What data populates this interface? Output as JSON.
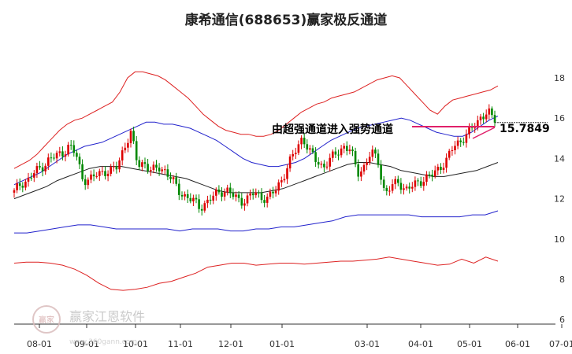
{
  "chart_data": {
    "type": "candlestick",
    "title": "康希通信(688653)赢家极反通道",
    "y_ticks": [
      18,
      16,
      14,
      12,
      10,
      8,
      6
    ],
    "ylim": [
      6,
      18.8
    ],
    "x_ticks": [
      "08-01",
      "09-01",
      "10-01",
      "11-01",
      "12-01",
      "01-01",
      "03-01",
      "04-01",
      "05-01",
      "06-01",
      "07-01"
    ],
    "annotation": "由超强通道进入强势通道",
    "last_price_label": "15.7849",
    "last_price": 15.78,
    "grid": false,
    "series": [
      {
        "role": "price",
        "color": "#cc0000",
        "values": [
          12.3,
          12.8,
          12.9,
          13.3,
          13.6,
          13.9,
          14.1,
          14.3,
          14.6,
          14.2,
          13.0,
          12.9,
          13.2,
          13.4,
          13.3,
          13.6,
          14.6,
          15.2,
          13.7,
          13.8,
          13.3,
          13.6,
          13.4,
          12.9,
          12.4,
          12.1,
          11.9,
          11.6,
          11.8,
          12.1,
          12.4,
          12.4,
          12.1,
          11.9,
          12.0,
          12.3,
          12.1,
          12.0,
          12.4,
          13.0,
          13.7,
          14.4,
          15.1,
          14.3,
          13.9,
          13.6,
          13.9,
          14.3,
          14.6,
          14.4,
          13.3,
          13.6,
          14.3,
          13.9,
          12.2,
          12.6,
          12.9,
          12.4,
          12.6,
          12.9,
          13.0,
          13.2,
          13.6,
          13.9,
          14.6,
          14.9,
          15.2,
          15.6,
          16.1,
          16.3,
          15.78
        ]
      },
      {
        "role": "channel-outer-upper",
        "color": "#dd2222",
        "values": [
          13.5,
          13.7,
          13.9,
          14.2,
          14.6,
          15.0,
          15.4,
          15.7,
          15.9,
          16.0,
          16.2,
          16.4,
          16.6,
          16.8,
          17.3,
          18.0,
          18.3,
          18.3,
          18.2,
          18.1,
          17.9,
          17.6,
          17.3,
          17.0,
          16.6,
          16.2,
          15.9,
          15.6,
          15.4,
          15.3,
          15.2,
          15.2,
          15.1,
          15.1,
          15.2,
          15.4,
          15.7,
          16.0,
          16.3,
          16.5,
          16.7,
          16.8,
          17.0,
          17.1,
          17.2,
          17.3,
          17.5,
          17.7,
          17.9,
          18.0,
          18.1,
          18.0,
          17.6,
          17.2,
          16.8,
          16.4,
          16.2,
          16.6,
          16.9,
          17.0,
          17.1,
          17.2,
          17.3,
          17.4,
          17.6
        ]
      },
      {
        "role": "channel-inner-upper",
        "color": "#2222cc",
        "values": [
          12.7,
          12.9,
          13.1,
          13.3,
          13.6,
          13.9,
          14.2,
          14.4,
          14.6,
          14.7,
          14.8,
          15.0,
          15.2,
          15.4,
          15.6,
          15.8,
          15.8,
          15.7,
          15.7,
          15.6,
          15.5,
          15.3,
          15.1,
          14.9,
          14.6,
          14.3,
          14.0,
          13.8,
          13.7,
          13.6,
          13.6,
          13.7,
          13.8,
          14.0,
          14.3,
          14.6,
          14.9,
          15.1,
          15.3,
          15.5,
          15.6,
          15.7,
          15.8,
          15.9,
          16.0,
          15.9,
          15.7,
          15.5,
          15.3,
          15.2,
          15.1,
          15.1,
          15.3,
          15.6,
          15.9,
          16.1
        ]
      },
      {
        "role": "channel-mid",
        "color": "#222222",
        "values": [
          12.0,
          12.2,
          12.4,
          12.6,
          12.9,
          13.1,
          13.3,
          13.5,
          13.6,
          13.6,
          13.6,
          13.5,
          13.4,
          13.3,
          13.2,
          13.1,
          13.0,
          12.8,
          12.6,
          12.4,
          12.3,
          12.3,
          12.3,
          12.3,
          12.4,
          12.5,
          12.7,
          12.9,
          13.1,
          13.3,
          13.5,
          13.7,
          13.8,
          13.8,
          13.7,
          13.6,
          13.4,
          13.3,
          13.2,
          13.1,
          13.1,
          13.2,
          13.3,
          13.4,
          13.6,
          13.8
        ]
      },
      {
        "role": "channel-inner-lower",
        "color": "#2222cc",
        "values": [
          10.3,
          10.3,
          10.4,
          10.5,
          10.6,
          10.7,
          10.7,
          10.6,
          10.5,
          10.5,
          10.5,
          10.5,
          10.5,
          10.4,
          10.5,
          10.5,
          10.5,
          10.4,
          10.4,
          10.5,
          10.5,
          10.6,
          10.6,
          10.7,
          10.8,
          10.9,
          11.1,
          11.2,
          11.2,
          11.2,
          11.2,
          11.2,
          11.1,
          11.1,
          11.1,
          11.1,
          11.2,
          11.2,
          11.4
        ]
      },
      {
        "role": "channel-outer-lower",
        "color": "#dd2222",
        "values": [
          8.8,
          8.85,
          8.85,
          8.8,
          8.7,
          8.5,
          8.2,
          7.8,
          7.5,
          7.45,
          7.5,
          7.6,
          7.8,
          7.9,
          8.1,
          8.3,
          8.6,
          8.7,
          8.8,
          8.8,
          8.7,
          8.75,
          8.8,
          8.8,
          8.75,
          8.8,
          8.85,
          8.9,
          8.9,
          8.95,
          9.0,
          9.1,
          9.0,
          8.9,
          8.8,
          8.7,
          8.75,
          9.0,
          8.8,
          9.1,
          8.9
        ]
      }
    ]
  },
  "watermark": {
    "name": "赢家江恩软件",
    "url": "www.360gann.com",
    "seal": "赢家"
  }
}
